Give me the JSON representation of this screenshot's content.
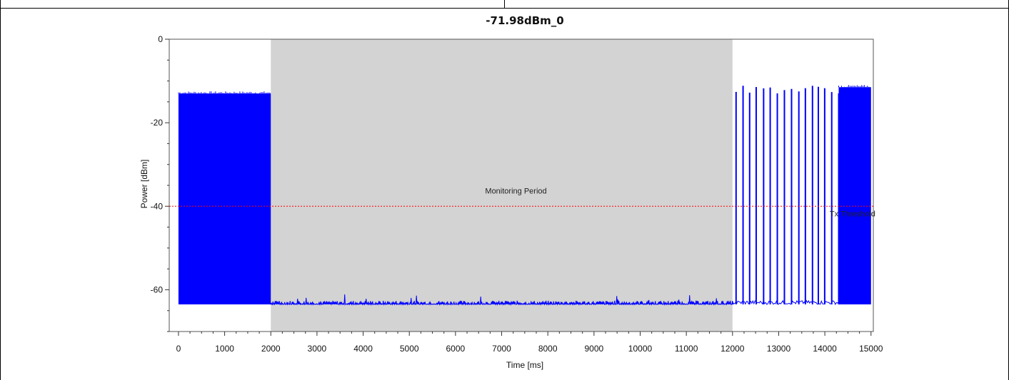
{
  "chart_data": {
    "type": "line",
    "title": "-71.98dBm_0",
    "xlabel": "Time [ms]",
    "ylabel": "Power [dBm]",
    "xlim": [
      -200,
      15050
    ],
    "ylim": [
      -70,
      0
    ],
    "x_ticks": [
      0,
      1000,
      2000,
      3000,
      4000,
      5000,
      6000,
      7000,
      8000,
      9000,
      10000,
      11000,
      12000,
      13000,
      14000,
      15000
    ],
    "x_tick_labels": [
      "0",
      "1000",
      "2000",
      "3000",
      "4000",
      "5000",
      "6000",
      "7000",
      "8000",
      "9000",
      "10000",
      "11000",
      "12000",
      "13000",
      "14000",
      "15000"
    ],
    "y_ticks": [
      0,
      -20,
      -40,
      -60
    ],
    "y_tick_labels": [
      "0",
      "-20",
      "-40",
      "-60"
    ],
    "grid": false,
    "series": [
      {
        "color": "#0000ff",
        "segments": [
          {
            "kind": "dense_block",
            "x_range": [
              0,
              2000
            ],
            "y_low": -63.5,
            "y_high": -13
          },
          {
            "kind": "noise_floor",
            "x_range": [
              2000,
              12000
            ],
            "y_low": -63.5,
            "y_high": -62.5
          },
          {
            "kind": "bursts",
            "x_range": [
              12000,
              14300
            ],
            "y_low": -63.5,
            "y_high_range": [
              -12.5,
              -10.5
            ]
          },
          {
            "kind": "dense_block",
            "x_range": [
              14300,
              15000
            ],
            "y_low": -63.5,
            "y_high": -11.5
          }
        ]
      }
    ],
    "shaded_region": {
      "x_range": [
        2000,
        12000
      ],
      "label": "Monitoring Period",
      "color": "#d3d3d3"
    },
    "threshold": {
      "y": -40,
      "label": "Tx Threshold",
      "color": "#ff0000",
      "style": "dotted"
    }
  }
}
